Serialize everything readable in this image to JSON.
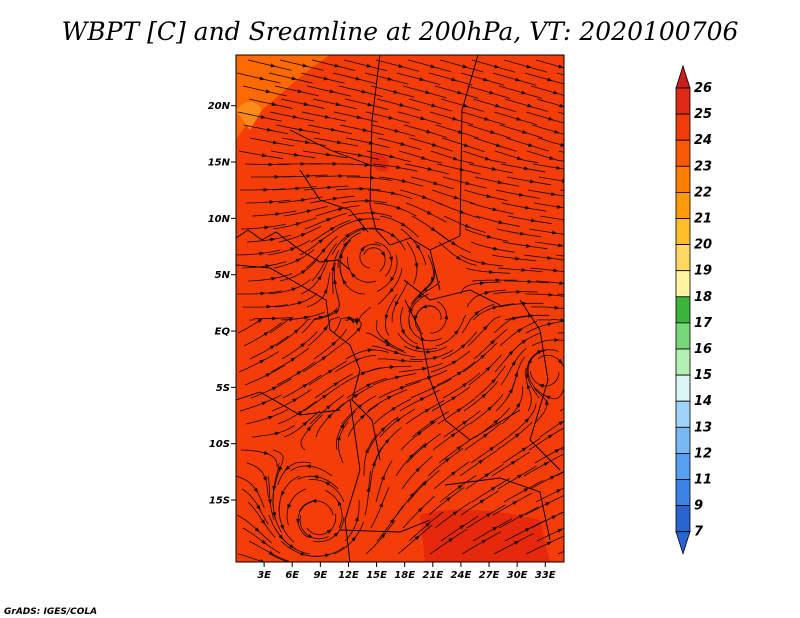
{
  "title": "WBPT [C] and Sreamline at 200hPa, VT: 2020100706",
  "credit": "GrADS: IGES/COLA",
  "map": {
    "lat_range": [
      -20.5,
      24.5
    ],
    "lon_range": [
      0,
      35
    ],
    "lat_ticks": [
      {
        "value": 20,
        "label": "20N"
      },
      {
        "value": 15,
        "label": "15N"
      },
      {
        "value": 10,
        "label": "10N"
      },
      {
        "value": 5,
        "label": "5N"
      },
      {
        "value": 0,
        "label": "EQ"
      },
      {
        "value": -5,
        "label": "5S"
      },
      {
        "value": -10,
        "label": "10S"
      },
      {
        "value": -15,
        "label": "15S"
      }
    ],
    "lon_ticks": [
      {
        "value": 3,
        "label": "3E"
      },
      {
        "value": 6,
        "label": "6E"
      },
      {
        "value": 9,
        "label": "9E"
      },
      {
        "value": 12,
        "label": "12E"
      },
      {
        "value": 15,
        "label": "15E"
      },
      {
        "value": 18,
        "label": "18E"
      },
      {
        "value": 21,
        "label": "21E"
      },
      {
        "value": 24,
        "label": "24E"
      },
      {
        "value": 27,
        "label": "27E"
      },
      {
        "value": 30,
        "label": "30E"
      },
      {
        "value": 33,
        "label": "33E"
      }
    ],
    "base_color": "#f53d0a",
    "warm_color": "#e6290d",
    "cool_color": "#ff6a00"
  },
  "colorbar": {
    "levels": [
      "26",
      "25",
      "24",
      "23",
      "22",
      "21",
      "20",
      "19",
      "18",
      "17",
      "16",
      "15",
      "14",
      "13",
      "12",
      "11",
      "9",
      "7"
    ],
    "colors": [
      "#c81e1e",
      "#dc2a16",
      "#f03c0a",
      "#fa5a05",
      "#ff7d00",
      "#ff9b0a",
      "#ffbe28",
      "#ffd864",
      "#fff5a0",
      "#3cb43c",
      "#78d778",
      "#b4f0b4",
      "#dcf5f5",
      "#a0d2fa",
      "#78b9f5",
      "#55a0f0",
      "#3c82e6",
      "#2864d2"
    ]
  }
}
